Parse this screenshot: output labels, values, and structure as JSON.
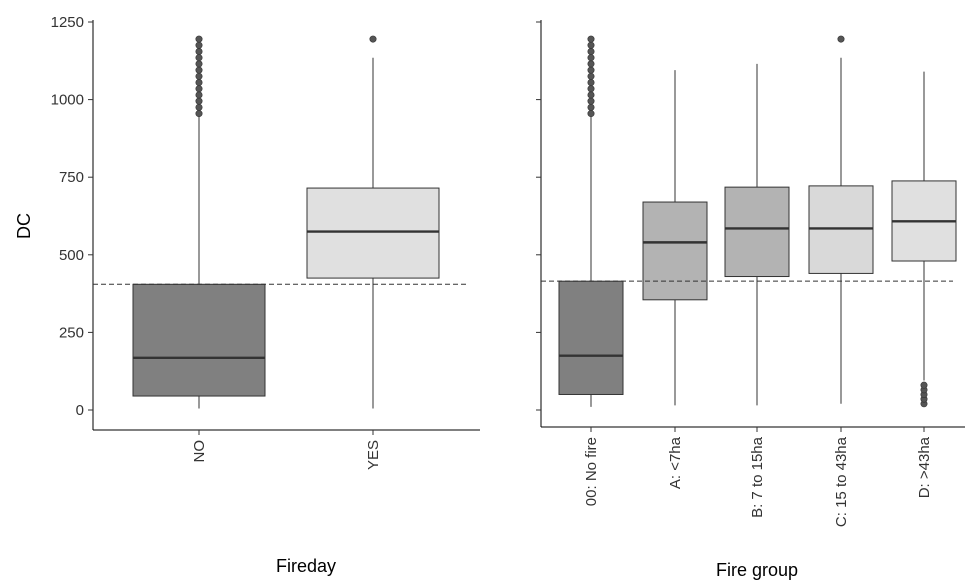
{
  "chart_data": [
    {
      "type": "box",
      "ylabel": "DC",
      "xlabel": "Fireday",
      "ylim": [
        -60,
        1250
      ],
      "yticks": [
        0,
        250,
        500,
        750,
        1000,
        1250
      ],
      "reference_line": 405,
      "categories": [
        "NO",
        "YES"
      ],
      "boxes": [
        {
          "category": "NO",
          "whisker_low": 5,
          "q1": 45,
          "median": 168,
          "q3": 405,
          "whisker_high": 945,
          "color": "#808080",
          "outliers": [
            955,
            975,
            995,
            1015,
            1035,
            1055,
            1075,
            1095,
            1115,
            1135,
            1155,
            1175,
            1195
          ]
        },
        {
          "category": "YES",
          "whisker_low": 5,
          "q1": 425,
          "median": 575,
          "q3": 715,
          "whisker_high": 1135,
          "color": "#e0e0e0",
          "outliers": [
            1195
          ]
        }
      ]
    },
    {
      "type": "box",
      "ylabel": "",
      "xlabel": "Fire group",
      "ylim": [
        -60,
        1250
      ],
      "yticks": [
        0,
        250,
        500,
        750,
        1000,
        1250
      ],
      "reference_line": 415,
      "categories": [
        "00: No fire",
        "A: <7ha",
        "B: 7 to 15ha",
        "C: 15 to 43ha",
        "D: >43ha"
      ],
      "boxes": [
        {
          "category": "00: No fire",
          "whisker_low": 10,
          "q1": 50,
          "median": 175,
          "q3": 415,
          "whisker_high": 945,
          "color": "#808080",
          "outliers": [
            955,
            975,
            995,
            1015,
            1035,
            1055,
            1075,
            1095,
            1115,
            1135,
            1155,
            1175,
            1195
          ]
        },
        {
          "category": "A: <7ha",
          "whisker_low": 15,
          "q1": 355,
          "median": 540,
          "q3": 670,
          "whisker_high": 1095,
          "color": "#b3b3b3",
          "outliers": []
        },
        {
          "category": "B: 7 to 15ha",
          "whisker_low": 15,
          "q1": 430,
          "median": 585,
          "q3": 718,
          "whisker_high": 1115,
          "color": "#b3b3b3",
          "outliers": []
        },
        {
          "category": "C: 15 to 43ha",
          "whisker_low": 20,
          "q1": 440,
          "median": 585,
          "q3": 722,
          "whisker_high": 1135,
          "color": "#d9d9d9",
          "outliers": [
            1195
          ]
        },
        {
          "category": "D: >43ha",
          "whisker_low": 95,
          "q1": 480,
          "median": 608,
          "q3": 738,
          "whisker_high": 1090,
          "color": "#e0e0e0",
          "outliers": [
            20,
            35,
            50,
            65,
            80
          ]
        }
      ]
    }
  ]
}
